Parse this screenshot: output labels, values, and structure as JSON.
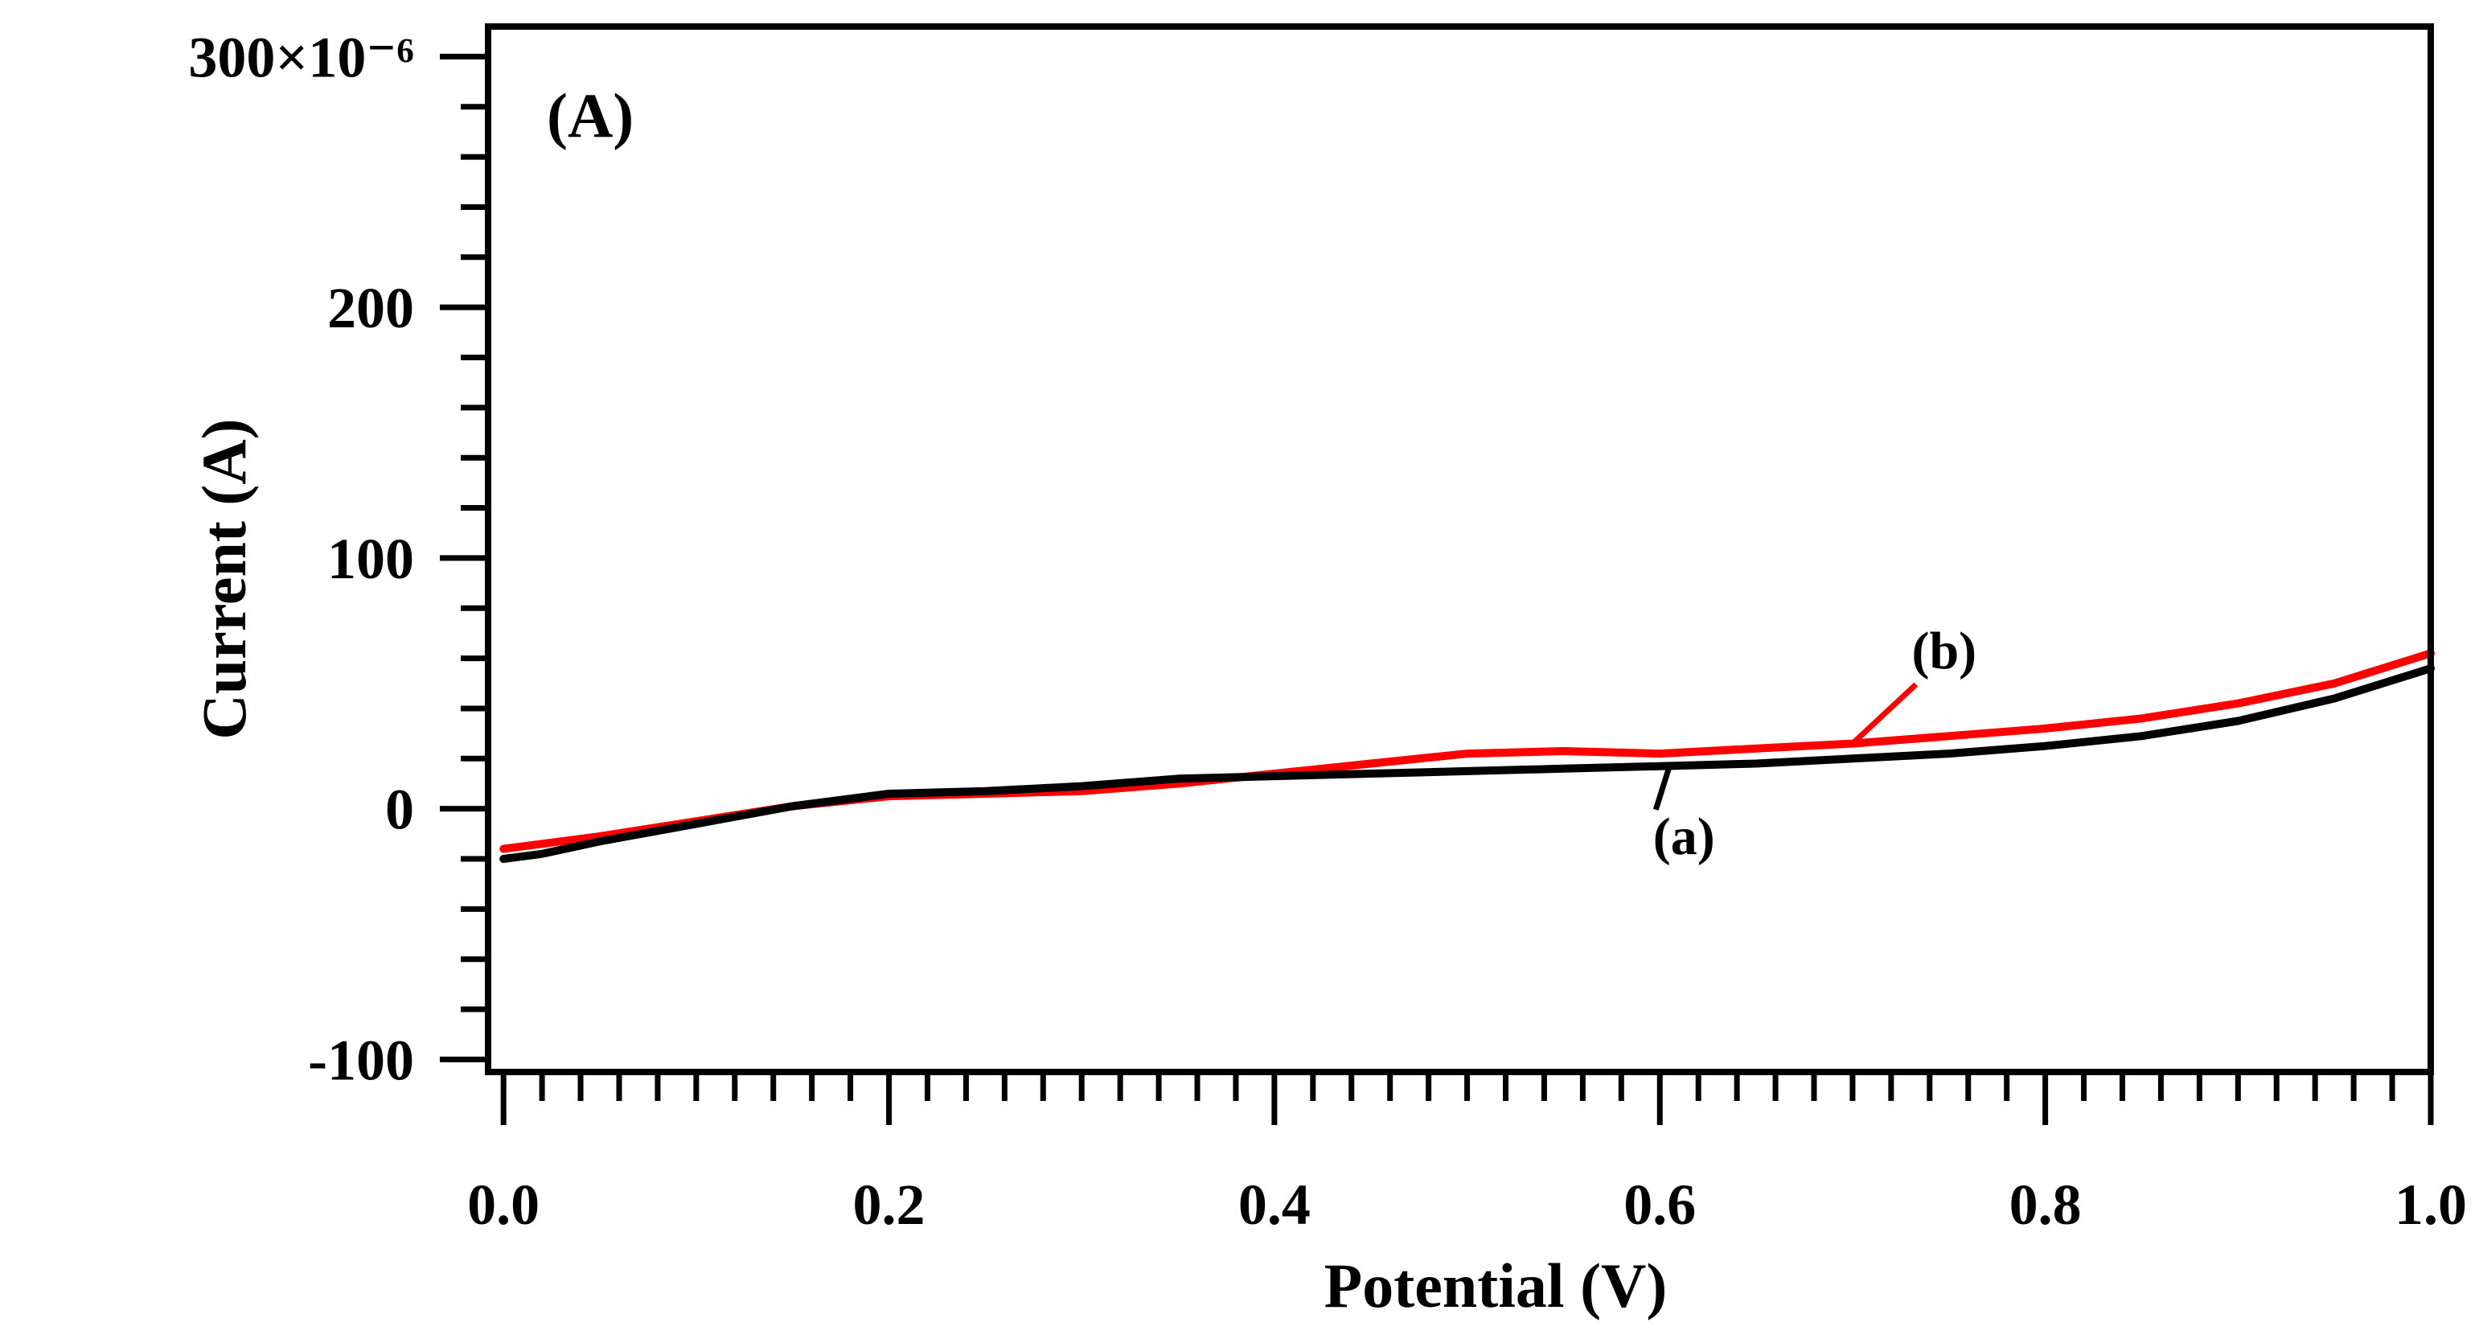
{
  "chart_data": {
    "type": "line",
    "panel_label": "(A)",
    "xlabel": "Potential (V)",
    "ylabel": "Current (A)",
    "xlim": [
      -0.008,
      1.0
    ],
    "ylim": [
      -105,
      312
    ],
    "x_ticks": [
      {
        "value": 0.0,
        "label": "0.0"
      },
      {
        "value": 0.2,
        "label": "0.2"
      },
      {
        "value": 0.4,
        "label": "0.4"
      },
      {
        "value": 0.6,
        "label": "0.6"
      },
      {
        "value": 0.8,
        "label": "0.8"
      },
      {
        "value": 1.0,
        "label": "1.0"
      }
    ],
    "x_minor_step": 0.02,
    "y_ticks": [
      {
        "value": -100,
        "label": "-100"
      },
      {
        "value": 0,
        "label": "0"
      },
      {
        "value": 100,
        "label": "100"
      },
      {
        "value": 200,
        "label": "200"
      },
      {
        "value": 300,
        "label": "300×10⁻⁶"
      }
    ],
    "y_minor_step": 20,
    "series": [
      {
        "name": "(a)",
        "color": "#000000",
        "x": [
          0.0,
          0.02,
          0.05,
          0.1,
          0.15,
          0.2,
          0.25,
          0.3,
          0.35,
          0.4,
          0.45,
          0.5,
          0.55,
          0.6,
          0.65,
          0.7,
          0.75,
          0.8,
          0.85,
          0.9,
          0.95,
          1.0
        ],
        "y": [
          -20,
          -18,
          -13,
          -6,
          1,
          6,
          7,
          9,
          12,
          13,
          14,
          15,
          16,
          17,
          18,
          20,
          22,
          25,
          29,
          35,
          44,
          56
        ],
        "label_anchor": {
          "x": 0.605,
          "y": 17
        },
        "label_pos": {
          "x": 0.6,
          "y": -18
        }
      },
      {
        "name": "(b)",
        "color": "#ff0000",
        "x": [
          0.0,
          0.02,
          0.05,
          0.1,
          0.15,
          0.2,
          0.25,
          0.3,
          0.35,
          0.4,
          0.45,
          0.5,
          0.55,
          0.6,
          0.65,
          0.7,
          0.75,
          0.8,
          0.85,
          0.9,
          0.95,
          1.0
        ],
        "y": [
          -16,
          -14,
          -11,
          -5,
          1,
          5,
          6,
          7,
          10,
          14,
          18,
          22,
          23,
          22,
          24,
          26,
          29,
          32,
          36,
          42,
          50,
          62
        ],
        "label_anchor": {
          "x": 0.7,
          "y": 26
        },
        "label_pos": {
          "x": 0.735,
          "y": 56
        }
      }
    ]
  }
}
